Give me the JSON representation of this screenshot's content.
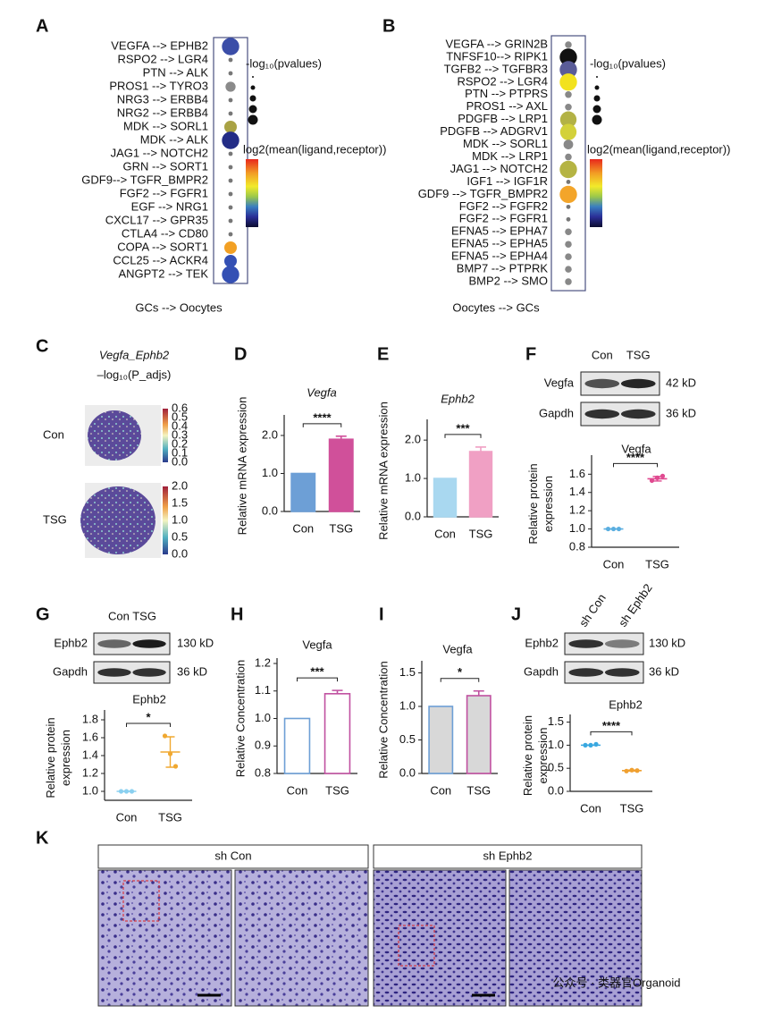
{
  "chart_data": [
    {
      "type": "dot",
      "label": "A",
      "title": "GCs --> Oocytes",
      "size_label": "-log₁₀(pvalues)",
      "color_label": "log2(mean(ligand,receptor))",
      "categories": [
        "VEGFA --> EPHB2",
        "RSPO2 --> LGR4",
        "PTN --> ALK",
        "PROS1 --> TYRO3",
        "NRG3 --> ERBB4",
        "NRG2 --> ERBB4",
        "MDK --> SORL1",
        "MDK --> ALK",
        "JAG1 --> NOTCH2",
        "GRN --> SORT1",
        "GDF9--> TGFR_BMPR2",
        "FGF2 --> FGFR1",
        "EGF --> NRG1",
        "CXCL17 --> GPR35",
        "CTLA4 --> CD80",
        "COPA --> SORT1",
        "CCL25 --> ACKR4",
        "ANGPT2 --> TEK"
      ],
      "sizes": [
        3,
        0.3,
        0.3,
        1.5,
        0.3,
        0.3,
        2,
        3,
        0.3,
        0.3,
        0.3,
        0.3,
        0.3,
        0.3,
        0.3,
        2,
        2,
        3
      ],
      "colors": [
        "#3b4ea8",
        "#777777",
        "#777777",
        "#8a8a8a",
        "#777777",
        "#777777",
        "#a9a244",
        "#232c86",
        "#777777",
        "#777777",
        "#777777",
        "#777777",
        "#777777",
        "#777777",
        "#777777",
        "#f2a024",
        "#3450b4",
        "#3450b4"
      ]
    },
    {
      "type": "dot",
      "label": "B",
      "title": "Oocytes --> GCs",
      "size_label": "-log₁₀(pvalues)",
      "color_label": "log2(mean(ligand,receptor))",
      "categories": [
        "VEGFA --> GRIN2B",
        "TNFSF10--> RIPK1",
        "TGFB2 --> TGFBR3",
        "RSPO2 --> LGR4",
        "PTN --> PTPRS",
        "PROS1 --> AXL",
        "PDGFB --> LRP1",
        "PDGFB --> ADGRV1",
        "MDK --> SORL1",
        "MDK --> LRP1",
        "JAG1 --> NOTCH2",
        "IGF1 --> IGF1R",
        "GDF9 --> TGFR_BMPR2",
        "FGF2 --> FGFR2",
        "FGF2 --> FGFR1",
        "EFNA5 --> EPHA7",
        "EFNA5 --> EPHA5",
        "EFNA5 --> EPHA4",
        "BMP7 --> PTPRK",
        "BMP2 --> SMO"
      ],
      "sizes": [
        0.8,
        3,
        3,
        3,
        0.8,
        0.8,
        2.8,
        2.8,
        1.4,
        0.8,
        3,
        0.3,
        3,
        0.3,
        0.3,
        0.8,
        0.8,
        0.8,
        0.8,
        0.8
      ],
      "colors": [
        "#888888",
        "#111111",
        "#5a5c98",
        "#f2e21e",
        "#888888",
        "#888888",
        "#b3b245",
        "#d3d13a",
        "#888888",
        "#888888",
        "#b5b443",
        "#777777",
        "#f3a52a",
        "#777777",
        "#777777",
        "#888888",
        "#888888",
        "#888888",
        "#888888",
        "#888888"
      ]
    },
    {
      "type": "bar",
      "label": "D",
      "title": "Vegfa",
      "ylabel": [
        "Relative mRNA expression"
      ],
      "categories": [
        "Con",
        "TSG"
      ],
      "values": [
        1.0,
        1.9
      ],
      "errors": [
        0,
        0.08
      ],
      "fills": [
        "#6d9fd6",
        "#d0509a"
      ],
      "colors": [
        "#6d9fd6",
        "#d0509a"
      ],
      "significance": "****",
      "ylim": [
        0,
        2.4
      ],
      "yticks": [
        {
          "value": 0,
          "label": "0.0"
        },
        {
          "value": 1,
          "label": "1.0"
        },
        {
          "value": 2,
          "label": "2.0"
        }
      ]
    },
    {
      "type": "bar",
      "label": "E",
      "title": "Ephb2",
      "ylabel": [
        "Relative mRNA expression"
      ],
      "categories": [
        "Con",
        "TSG"
      ],
      "values": [
        1.0,
        1.7
      ],
      "errors": [
        0,
        0.12
      ],
      "fills": [
        "#a9d8f0",
        "#f0a0c4"
      ],
      "colors": [
        "#a9d8f0",
        "#f0a0c4"
      ],
      "significance": "***",
      "ylim": [
        0,
        2.4
      ],
      "yticks": [
        {
          "value": 0,
          "label": "0.0"
        },
        {
          "value": 1,
          "label": "1.0"
        },
        {
          "value": 2,
          "label": "2.0"
        }
      ]
    },
    {
      "type": "scatter",
      "title": "Vegfa",
      "ylabel": [
        "Relative protein",
        "expression"
      ],
      "categories": [
        "Con",
        "TSG"
      ],
      "values": [
        [
          1.0,
          1.0,
          1.0
        ],
        [
          1.53,
          1.56,
          1.58
        ]
      ],
      "means": [
        1.0,
        1.55
      ],
      "errors": [
        0,
        0.025
      ],
      "colors": [
        "#5aaee0",
        "#e04a90"
      ],
      "significance": "****",
      "ylim": [
        0.8,
        1.75
      ],
      "yticks": [
        0.8,
        {
          "value": 1,
          "label": "1.0"
        },
        1.2,
        1.4,
        1.6
      ]
    },
    {
      "type": "scatter",
      "title": "Ephb2",
      "ylabel": [
        "Relative protein",
        "expression"
      ],
      "categories": [
        "Con",
        "TSG"
      ],
      "values": [
        [
          1.0,
          1.0,
          1.0
        ],
        [
          1.62,
          1.42,
          1.28
        ]
      ],
      "means": [
        1.0,
        1.44
      ],
      "errors": [
        0,
        0.17
      ],
      "colors": [
        "#8ad0f0",
        "#f0a830"
      ],
      "significance": "*",
      "ylim": [
        0.9,
        1.85
      ],
      "yticks": [
        {
          "value": 1,
          "label": "1.0"
        },
        1.2,
        1.4,
        1.6,
        1.8
      ]
    },
    {
      "type": "bar",
      "label": "H",
      "title": "Vegfa",
      "ylabel": [
        "Relative Concentration"
      ],
      "categories": [
        "Con",
        "TSG"
      ],
      "values": [
        1.0,
        1.09
      ],
      "errors": [
        0,
        0.012
      ],
      "fills": [
        "#ffffff",
        "#ffffff"
      ],
      "colors": [
        "#6d9fd6",
        "#c050a0"
      ],
      "significance": "***",
      "ylim": [
        0.8,
        1.2
      ],
      "yticks": [
        0.8,
        0.9,
        {
          "value": 1,
          "label": "1.0"
        },
        1.1,
        1.2
      ]
    },
    {
      "type": "bar",
      "label": "I",
      "title": "Vegfa",
      "ylabel": [
        "Relative Concentration"
      ],
      "categories": [
        "Con",
        "TSG"
      ],
      "values": [
        1.0,
        1.16
      ],
      "errors": [
        0,
        0.07
      ],
      "fills": [
        "#d8d8d8",
        "#d8d8d8"
      ],
      "colors": [
        "#6d9fd6",
        "#c050a0"
      ],
      "significance": "*",
      "ylim": [
        0,
        1.6
      ],
      "yticks": [
        {
          "value": 0,
          "label": "0.0"
        },
        0.5,
        {
          "value": 1,
          "label": "1.0"
        },
        1.5
      ]
    },
    {
      "type": "scatter",
      "title": "Ephb2",
      "ylabel": [
        "Relative protein",
        "expression"
      ],
      "categories": [
        "Con",
        "TSG"
      ],
      "values": [
        [
          1.0,
          1.0,
          1.02
        ],
        [
          0.44,
          0.46,
          0.45
        ]
      ],
      "means": [
        1.0,
        0.45
      ],
      "errors": [
        0,
        0.01
      ],
      "colors": [
        "#3aa8e0",
        "#f0a030"
      ],
      "significance": "****",
      "ylim": [
        0,
        1.55
      ],
      "yticks": [
        {
          "value": 0,
          "label": "0.0"
        },
        0.5,
        {
          "value": 1,
          "label": "1.0"
        },
        1.5
      ]
    }
  ],
  "figures": {
    "C": {
      "label": "C",
      "title": "Vegfa_Ephb2",
      "subtitle": "–log₁₀(P_adjs)",
      "rows": [
        {
          "name": "Con",
          "scale": [
            "0.6",
            "0.5",
            "0.4",
            "0.3",
            "0.2",
            "0.1",
            "0.0"
          ]
        },
        {
          "name": "TSG",
          "scale": [
            "2.0",
            "1.5",
            "1.0",
            "0.5",
            "0.0"
          ]
        }
      ]
    },
    "blots": [
      {
        "label": "F",
        "lanes": [
          "Con",
          "TSG"
        ],
        "rows": [
          {
            "protein": "Vegfa",
            "size": "42 kD"
          },
          {
            "protein": "Gapdh",
            "size": "36 kD"
          }
        ]
      },
      {
        "label": "G",
        "lanes": [
          "Con TSG"
        ],
        "rows": [
          {
            "protein": "Ephb2",
            "size": "130 kD"
          },
          {
            "protein": "Gapdh",
            "size": "36  kD"
          }
        ]
      },
      {
        "label": "J",
        "lanes": [
          "sh Con",
          "sh Ephb2"
        ],
        "rows": [
          {
            "protein": "Ephb2",
            "size": "130 kD"
          },
          {
            "protein": "Gapdh",
            "size": "36 kD"
          }
        ]
      }
    ],
    "K": {
      "label": "K",
      "panels": [
        "sh Con",
        "sh Ephb2"
      ]
    },
    "watermark": "公众号 · 类器官Organoid"
  }
}
